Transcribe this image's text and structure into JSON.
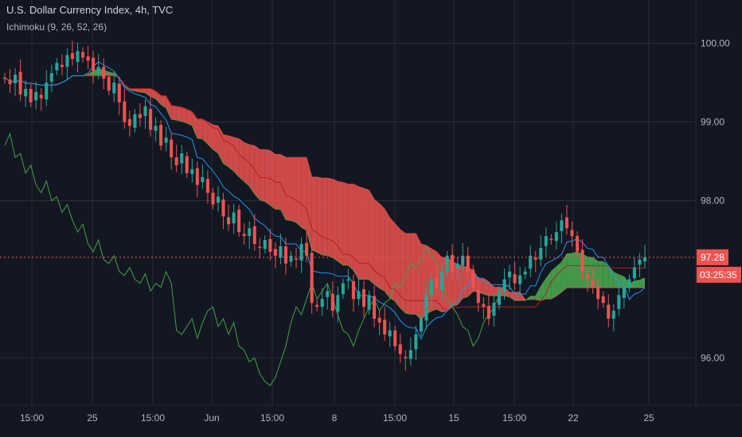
{
  "header": {
    "title": "U.S. Dollar Currency Index, 4h, TVC",
    "indicator": "Ichimoku (9, 26, 52, 26)"
  },
  "colors": {
    "background": "#131722",
    "grid": "#2a2e39",
    "up": "#26a69a",
    "down": "#ef5350",
    "tenkan": "#2196f3",
    "kijun": "#b71c1c",
    "chikou": "#43a047",
    "kumo_bull": "#4caf50",
    "kumo_bear": "#ef5350",
    "price_line": "#ef5350"
  },
  "chart_data": {
    "type": "candlestick",
    "interval": "4h",
    "y_axis": {
      "ticks": [
        "100.00",
        "99.00",
        "98.00",
        "96.00"
      ],
      "tick_values": [
        100,
        99,
        98,
        96
      ],
      "ylim": [
        95.4,
        100.55
      ]
    },
    "x_axis": {
      "labels": [
        "15:00",
        "25",
        "15:00",
        "Jun",
        "15:00",
        "8",
        "15:00",
        "15",
        "15:00",
        "22",
        "25"
      ]
    },
    "last_price": "97.28",
    "countdown": "03:25:35",
    "grid": true,
    "closes": [
      99.55,
      99.48,
      99.6,
      99.35,
      99.42,
      99.25,
      99.38,
      99.3,
      99.5,
      99.62,
      99.75,
      99.7,
      99.85,
      99.8,
      99.9,
      99.82,
      99.78,
      99.65,
      99.7,
      99.55,
      99.4,
      99.5,
      99.25,
      99.0,
      98.95,
      99.1,
      99.05,
      99.2,
      98.9,
      98.95,
      98.7,
      98.8,
      98.55,
      98.45,
      98.6,
      98.35,
      98.4,
      98.2,
      98.3,
      98.1,
      97.95,
      98.05,
      97.8,
      97.7,
      97.85,
      97.6,
      97.55,
      97.65,
      97.45,
      97.4,
      97.5,
      97.35,
      97.3,
      97.42,
      97.2,
      97.3,
      97.25,
      97.45,
      97.3,
      96.7,
      96.65,
      96.75,
      96.85,
      96.6,
      96.8,
      96.95,
      97.0,
      96.75,
      96.85,
      96.65,
      96.8,
      96.5,
      96.45,
      96.3,
      96.35,
      96.15,
      96.05,
      96.0,
      96.1,
      96.3,
      96.5,
      96.8,
      97.0,
      96.9,
      97.1,
      97.3,
      97.1,
      97.2,
      97.3,
      97.1,
      96.9,
      96.7,
      96.65,
      96.5,
      96.7,
      96.85,
      97.0,
      97.1,
      96.95,
      97.05,
      97.1,
      97.3,
      97.25,
      97.4,
      97.55,
      97.5,
      97.6,
      97.75,
      97.65,
      97.55,
      97.35,
      97.1,
      97.0,
      96.9,
      96.75,
      96.7,
      96.5,
      96.6,
      96.8,
      96.9,
      97.0,
      97.15,
      97.25,
      97.28
    ]
  }
}
